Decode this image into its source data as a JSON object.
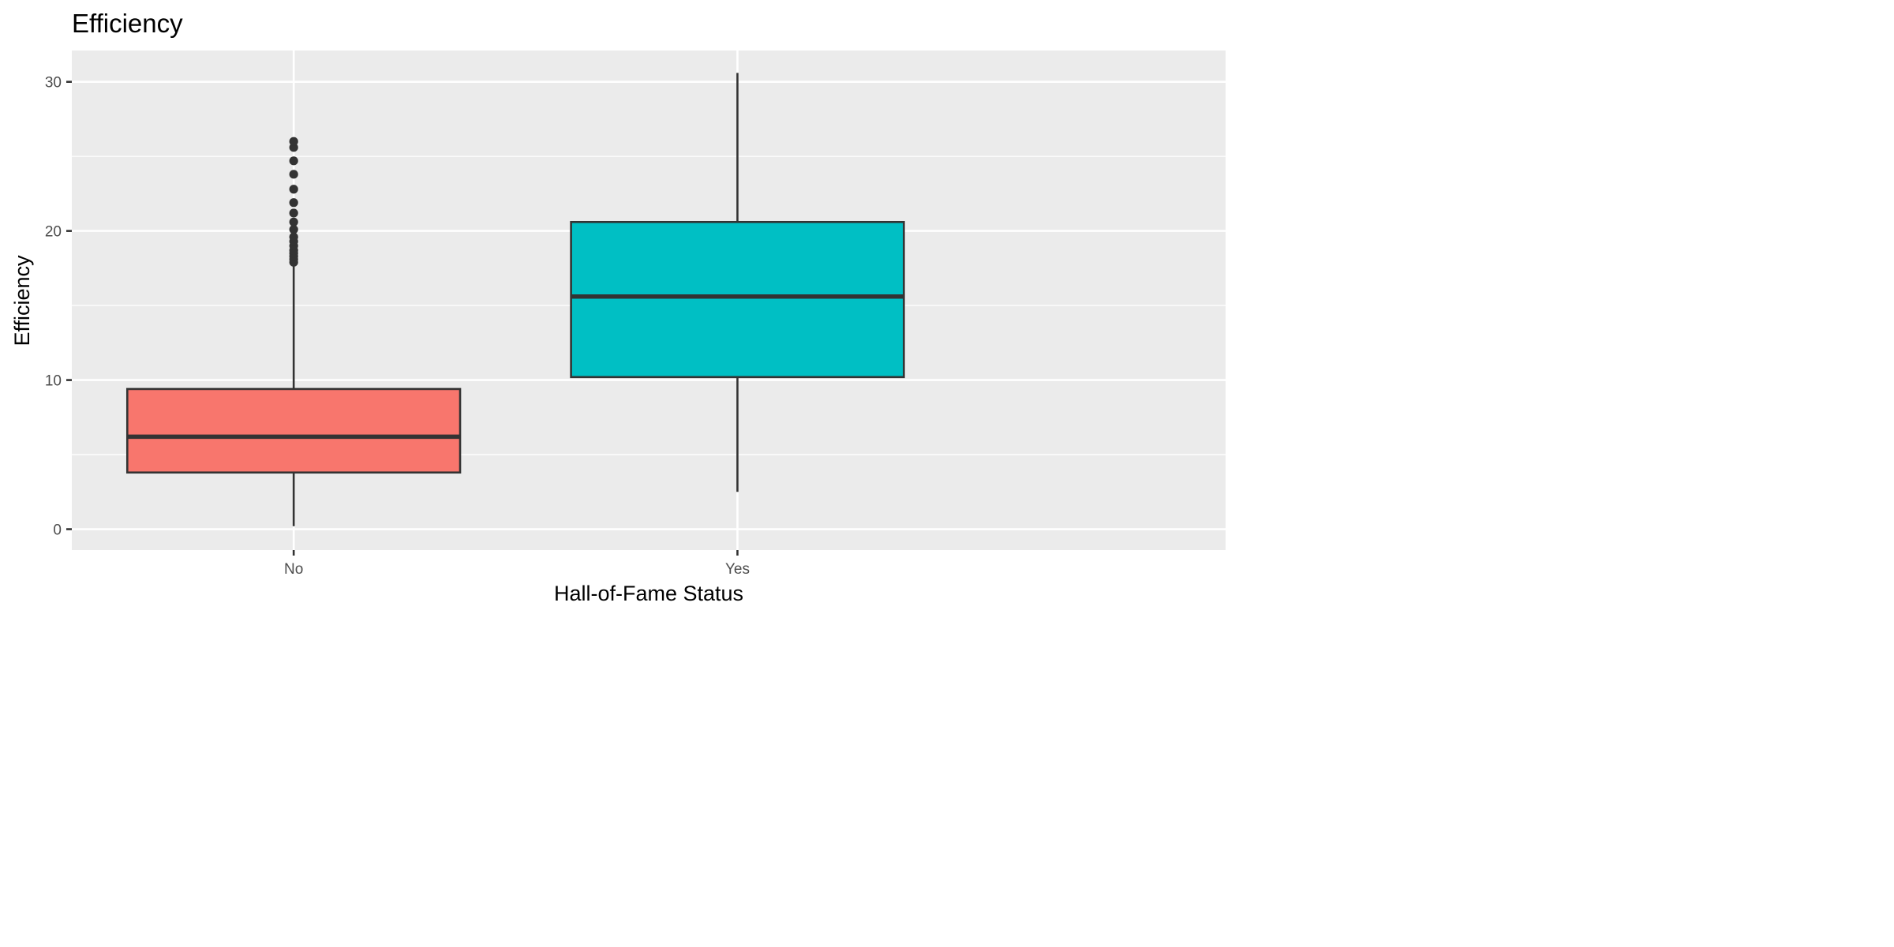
{
  "chart_data": {
    "type": "boxplot",
    "title": "Efficiency",
    "xlabel": "Hall-of-Fame Status",
    "ylabel": "Efficiency",
    "ylim": [
      -1.4,
      32.1
    ],
    "yticks": [
      0,
      10,
      20,
      30
    ],
    "y_tick_labels": [
      "0",
      "10",
      "20",
      "30"
    ],
    "categories": [
      "No",
      "Yes"
    ],
    "grid": true,
    "legend": "none",
    "colors": {
      "panel_background": "#ebebeb",
      "grid": "#ffffff",
      "outline": "#333333",
      "tick": "#333333"
    },
    "boxes": [
      {
        "category": "No",
        "fill": "#f8766d",
        "whisker_low": 0.2,
        "q1": 3.8,
        "median": 6.2,
        "q3": 9.4,
        "whisker_high": 17.8,
        "outliers": [
          17.9,
          18.1,
          18.3,
          18.5,
          18.7,
          19.0,
          19.3,
          19.6,
          20.1,
          20.6,
          21.2,
          21.9,
          22.8,
          23.8,
          24.7,
          25.6,
          26.0
        ]
      },
      {
        "category": "Yes",
        "fill": "#00bfc4",
        "whisker_low": 2.5,
        "q1": 10.2,
        "median": 15.6,
        "q3": 20.6,
        "whisker_high": 30.6,
        "outliers": []
      }
    ]
  }
}
